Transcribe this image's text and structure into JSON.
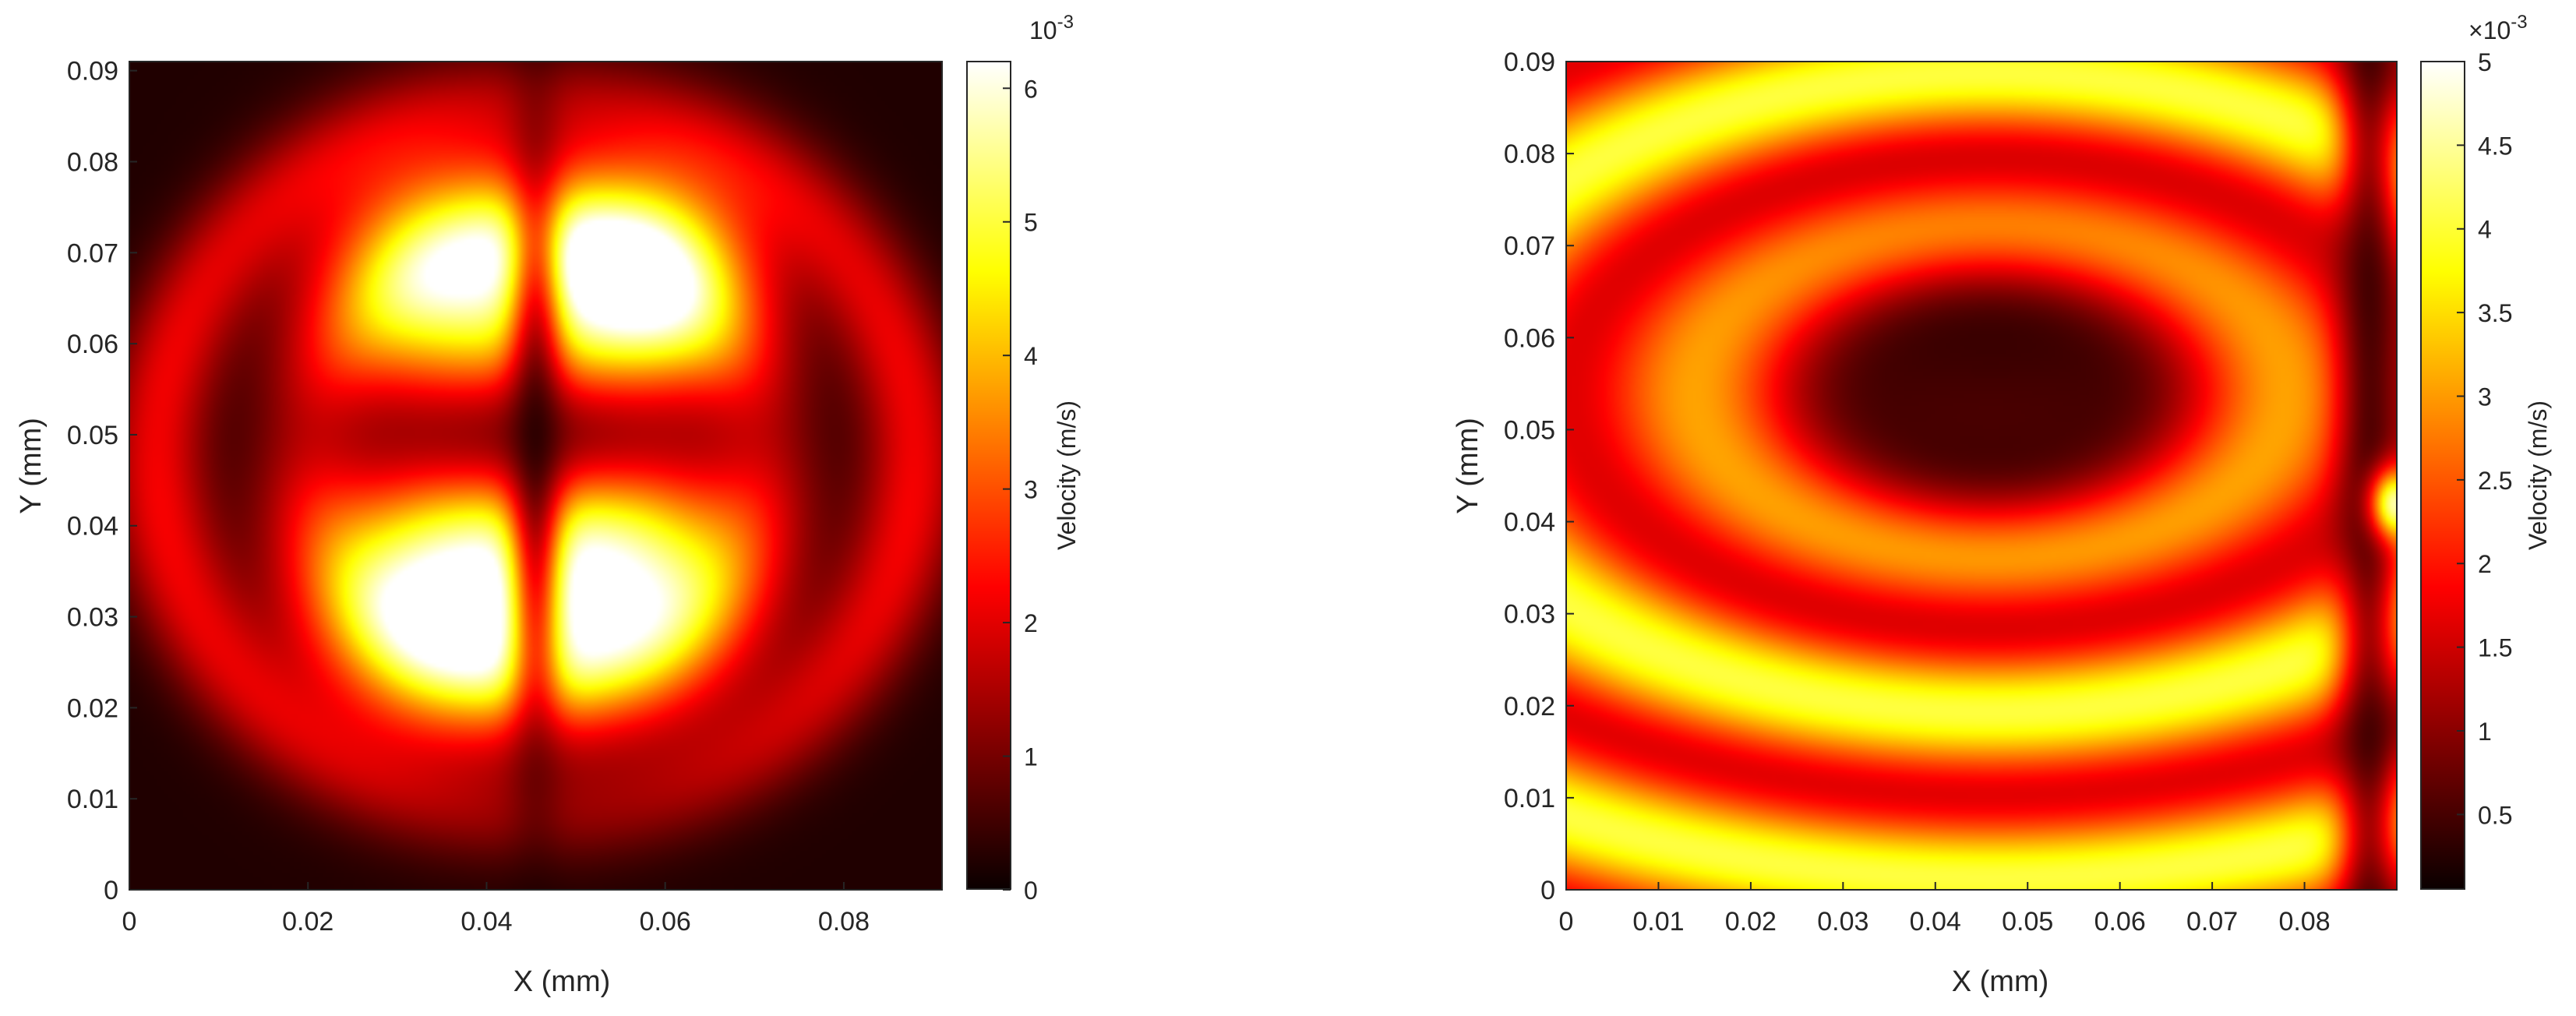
{
  "chart_data": [
    {
      "type": "heatmap",
      "xlabel": "X (mm)",
      "ylabel": "Y (mm)",
      "xlim": [
        0,
        0.091
      ],
      "ylim": [
        0,
        0.091
      ],
      "xticks": [
        "0",
        "0.02",
        "0.04",
        "0.06",
        "0.08"
      ],
      "xtick_values": [
        0,
        0.02,
        0.04,
        0.06,
        0.08
      ],
      "yticks": [
        "0",
        "0.01",
        "0.02",
        "0.03",
        "0.04",
        "0.05",
        "0.06",
        "0.07",
        "0.08",
        "0.09"
      ],
      "ytick_values": [
        0,
        0.01,
        0.02,
        0.03,
        0.04,
        0.05,
        0.06,
        0.07,
        0.08,
        0.09
      ],
      "colorbar": {
        "label": "Velocity (m/s)",
        "multiplier": "10",
        "multiplier_prefix": "",
        "exponent": "-3",
        "range": [
          0,
          6.2
        ],
        "ticks": [
          "0",
          "1",
          "2",
          "3",
          "4",
          "5",
          "6"
        ],
        "tick_values": [
          0,
          1,
          2,
          3,
          4,
          5,
          6
        ]
      },
      "colormap": "hot",
      "pattern": "four bright lobes near the centre with faint surrounding rings",
      "features": [
        {
          "x": 0.036,
          "y": 0.067,
          "value": 5.0,
          "spread": 0.01
        },
        {
          "x": 0.057,
          "y": 0.067,
          "value": 6.2,
          "spread": 0.009
        },
        {
          "x": 0.035,
          "y": 0.032,
          "value": 6.0,
          "spread": 0.01
        },
        {
          "x": 0.055,
          "y": 0.034,
          "value": 5.6,
          "spread": 0.01
        }
      ]
    },
    {
      "type": "heatmap",
      "xlabel": "X (mm)",
      "ylabel": "Y (mm)",
      "xlim": [
        0,
        0.09
      ],
      "ylim": [
        0,
        0.09
      ],
      "xticks": [
        "0",
        "0.01",
        "0.02",
        "0.03",
        "0.04",
        "0.05",
        "0.06",
        "0.07",
        "0.08"
      ],
      "xtick_values": [
        0,
        0.01,
        0.02,
        0.03,
        0.04,
        0.05,
        0.06,
        0.07,
        0.08
      ],
      "yticks": [
        "0",
        "0.01",
        "0.02",
        "0.03",
        "0.04",
        "0.05",
        "0.06",
        "0.07",
        "0.08",
        "0.09"
      ],
      "ytick_values": [
        0,
        0.01,
        0.02,
        0.03,
        0.04,
        0.05,
        0.06,
        0.07,
        0.08,
        0.09
      ],
      "colorbar": {
        "label": "Velocity (m/s)",
        "multiplier": "10",
        "multiplier_prefix": "×",
        "exponent": "-3",
        "range": [
          0.05,
          5
        ],
        "ticks": [
          "0.5",
          "1",
          "1.5",
          "2",
          "2.5",
          "3",
          "3.5",
          "4",
          "4.5",
          "5"
        ],
        "tick_values": [
          0.5,
          1,
          1.5,
          2,
          2.5,
          3,
          3.5,
          4,
          4.5,
          5
        ]
      },
      "colormap": "hot",
      "pattern": "concentric elliptical rings around a dark centre",
      "features": [
        {
          "x": 0.046,
          "y": 0.055,
          "value": 0.3,
          "spread": 0.01
        }
      ]
    }
  ]
}
